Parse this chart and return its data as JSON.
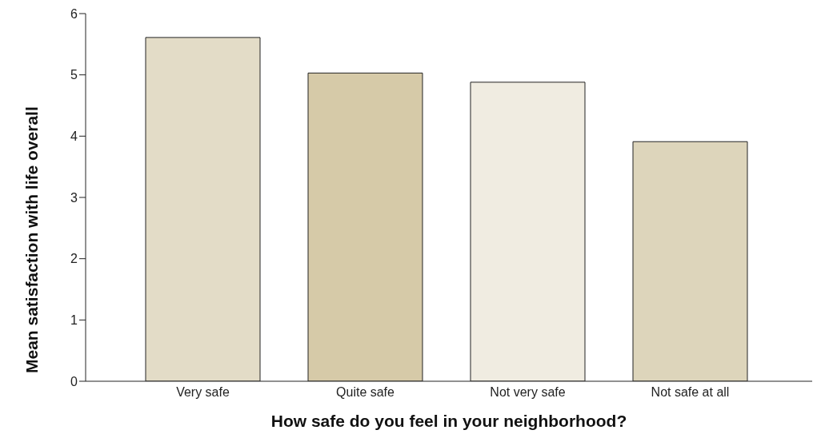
{
  "chart_data": {
    "type": "bar",
    "categories": [
      "Very safe",
      "Quite safe",
      "Not very safe",
      "Not safe at all"
    ],
    "values": [
      5.61,
      5.03,
      4.88,
      3.91
    ],
    "colors": [
      "#e3dcc7",
      "#d6caa8",
      "#f0ece1",
      "#ddd5bb"
    ],
    "xlabel": "How safe do you feel in your neighborhood?",
    "ylabel": "Mean satisfaction with life overall",
    "ylim": [
      0,
      6
    ],
    "yticks": [
      0,
      1,
      2,
      3,
      4,
      5,
      6
    ],
    "grid": false,
    "legend": false
  }
}
